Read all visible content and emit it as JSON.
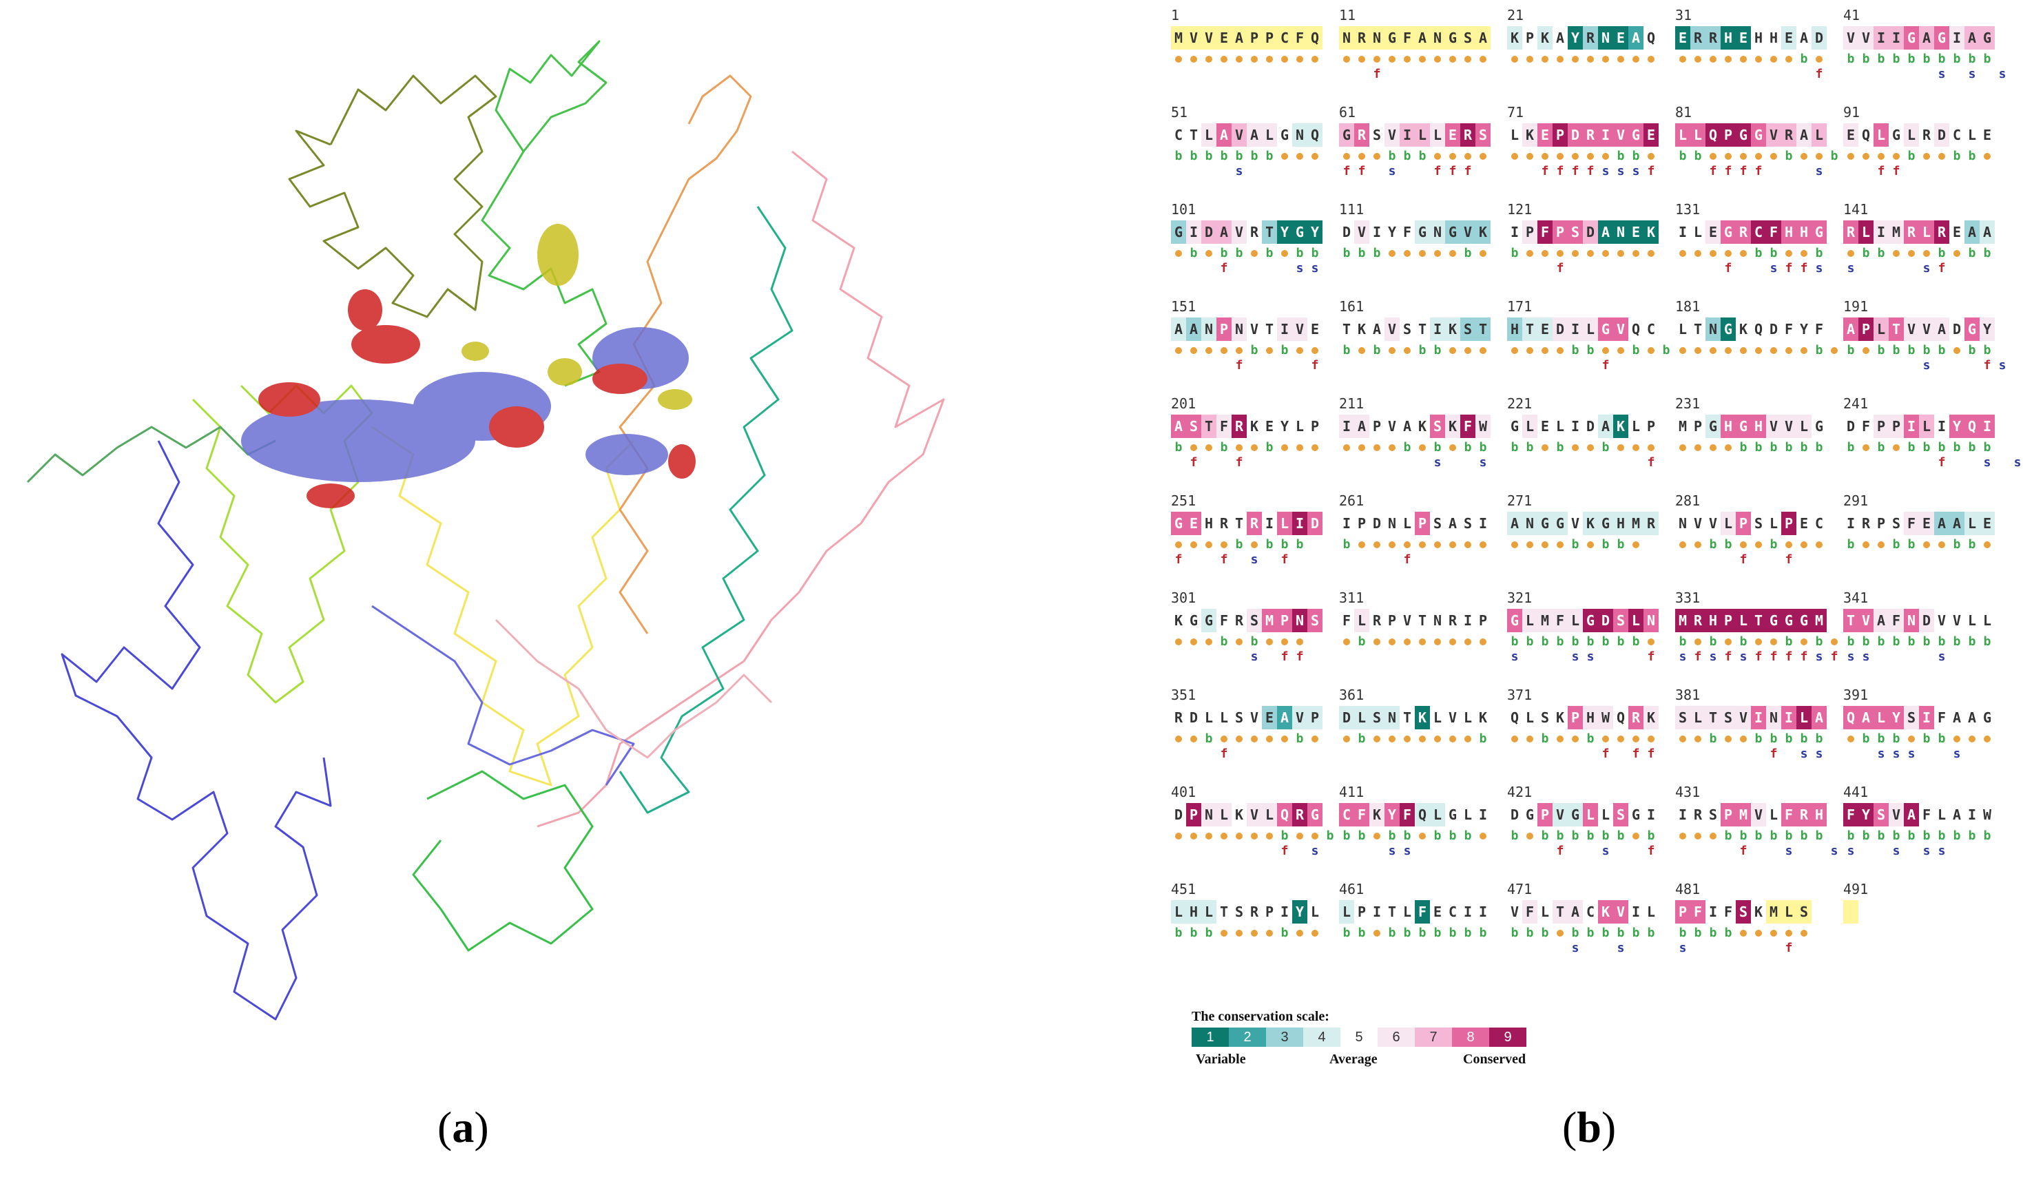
{
  "captions": {
    "a": "a",
    "b": "b"
  },
  "colors": {
    "scale": [
      "#0d7a6e",
      "#3ca7a6",
      "#9bd3d9",
      "#d7eeee",
      "#ffffff",
      "#f6e7f1",
      "#f4b8d6",
      "#e4679f",
      "#a3195b"
    ],
    "scale_text": [
      "#ffffff",
      "#ffffff",
      "#333333",
      "#333333",
      "#333333",
      "#333333",
      "#333333",
      "#ffffff",
      "#ffffff"
    ],
    "insufficient": "#fff59a",
    "exposed": "#e8a13a",
    "buried": "#3aa84a",
    "functional": "#c0242d",
    "structural": "#2c3aa0"
  },
  "legend": {
    "title": "The conservation scale:",
    "grades": [
      "1",
      "2",
      "3",
      "4",
      "5",
      "6",
      "7",
      "8",
      "9"
    ],
    "left": "Variable",
    "mid": "Average",
    "right": "Conserved"
  },
  "blocks": [
    {
      "n": "1",
      "seq": "MVVEAPPCFQ",
      "g": "YYYYYYYYYY",
      "e": "eeeeeeeeee",
      "f": "          "
    },
    {
      "n": "11",
      "seq": "NRNGFANGSA",
      "g": "YYYYYYYYYY",
      "e": "eeeeeeeeee",
      "f": "  f       "
    },
    {
      "n": "21",
      "seq": "KPKAYRNEAQ",
      "g": "4545131125",
      "e": "eeeeeeeeee",
      "f": "          "
    },
    {
      "n": "31",
      "seq": "ERRHEHHEAD",
      "g": "1331155454",
      "e": "eeeeeeeebe",
      "f": "         f"
    },
    {
      "n": "41",
      "seq": "VVIIGAGIAG",
      "g": "6677878677",
      "e": "bbbbbbbbbb",
      "f": "      s s s"
    },
    {
      "n": "51",
      "seq": "CTLAVALGNQ",
      "g": "5568766544",
      "e": "bbbbbbbeee",
      "f": "    s     "
    },
    {
      "n": "61",
      "seq": "GRSVILLERS",
      "g": "7856776898",
      "e": "eeebbbeeee",
      "f": "ff s  fff "
    },
    {
      "n": "71",
      "seq": "LKEPDRIVGE",
      "g": "5689888889",
      "e": "eeeeeeebbe",
      "f": "  ffffsssf"
    },
    {
      "n": "81",
      "seq": "LLQPGGVRAL",
      "g": "8899987767",
      "e": "bbeeeeebeeb",
      "f": "  ffff   s"
    },
    {
      "n": "91",
      "seq": "EQLGLRDCLE",
      "g": "6585656555",
      "e": "eeeebeebbe",
      "f": "  ff      "
    },
    {
      "n": "101",
      "seq": "GIDAVRTYGY",
      "g": "3677653111",
      "e": "ebebbebebb",
      "f": "   f    ss"
    },
    {
      "n": "111",
      "seq": "DVIYFGNGVK",
      "g": "5655544333",
      "e": "bbbeeeeebe",
      "f": "          "
    },
    {
      "n": "121",
      "seq": "IPFPSDANEK",
      "g": "5698871111",
      "e": "beeeeeeeee",
      "f": "   f      "
    },
    {
      "n": "131",
      "seq": "ILEGRCFHHG",
      "g": "5568899888",
      "e": "eeeeebbeeb",
      "f": "   f  sffs"
    },
    {
      "n": "141",
      "seq": "RLIMRLREAA",
      "g": "8966889534",
      "e": "ebbeeebebb",
      "f": "s    sf   "
    },
    {
      "n": "151",
      "seq": "AANPNVTIVE",
      "g": "4348655665",
      "e": "eeeeebebee",
      "f": "    f    f"
    },
    {
      "n": "161",
      "seq": "TKAVSTIKST",
      "g": "5556554433",
      "e": "bebeebbeee",
      "f": "          "
    },
    {
      "n": "171",
      "seq": "HTEDILGVQC",
      "g": "3446668855",
      "e": "eeeebbeebeb",
      "f": "      f   "
    },
    {
      "n": "181",
      "seq": "LTNGKQDFYF",
      "g": "5531555555",
      "e": "eeeeeeeeebe",
      "f": "          "
    },
    {
      "n": "191",
      "seq": "APLTVVADGY",
      "g": "8978666586",
      "e": "bebbbbbebb",
      "f": "     s   fs"
    },
    {
      "n": "201",
      "seq": "ASTFRKEYLP",
      "g": "8876955555",
      "e": "beebeebeee",
      "f": " f  f     "
    },
    {
      "n": "211",
      "seq": "IAPVAKSKFW",
      "g": "6655558696",
      "e": "eeeebebebb",
      "f": "      s  s"
    },
    {
      "n": "221",
      "seq": "GLELIDAKLP",
      "g": "5655554155",
      "e": "bbebeebeee",
      "f": "         f"
    },
    {
      "n": "231",
      "seq": "MPGHGHVVLG",
      "g": "5548886665",
      "e": "eeeebbbbbb",
      "f": "          "
    },
    {
      "n": "241",
      "seq": "DFPPILIYQI",
      "g": "5566875888",
      "e": "bebebbbbbb",
      "f": "      f  s s"
    },
    {
      "n": "251",
      "seq": "GEHRTRILID",
      "g": "8855585898",
      "e": "eeeebebbb",
      "f": "f  f s f  "
    },
    {
      "n": "261",
      "seq": "IPDNLPSASI",
      "g": "5555585555",
      "e": "beeeeeeeee",
      "f": "    f     "
    },
    {
      "n": "271",
      "seq": "ANGGVKGHMR",
      "g": "4444544444",
      "e": "eeeebebbe",
      "f": "          "
    },
    {
      "n": "281",
      "seq": "NVVLPSLPEC",
      "g": "5556855955",
      "e": "eebbeebeee",
      "f": "    f  f  "
    },
    {
      "n": "291",
      "seq": "IRPSFEAALE",
      "g": "5555663344",
      "e": "beebbeebbe",
      "f": "          "
    },
    {
      "n": "301",
      "seq": "KGGFRSMPNS",
      "g": "5545568898",
      "e": "eeebebeee",
      "f": "     s ff "
    },
    {
      "n": "311",
      "seq": "FLRPVTNRIP",
      "g": "5655555555",
      "e": "ebeeeeeeee",
      "f": "          "
    },
    {
      "n": "321",
      "seq": "GLMFLGDSLN",
      "g": "8666699898",
      "e": "bbbbbbbbbe",
      "f": "s   ss   f"
    },
    {
      "n": "331",
      "seq": "MRHPLTGGGM",
      "g": "9999999999",
      "e": "bebebeebebe",
      "f": "sfsfsffffsf"
    },
    {
      "n": "341",
      "seq": "TVAFNDVVLL",
      "g": "8866865555",
      "e": "bbbbbbbbbb",
      "f": "ss    s   "
    },
    {
      "n": "351",
      "seq": "RDLLSVEAVP",
      "g": "5555553244",
      "e": "eebeeeeebe",
      "f": "   f      "
    },
    {
      "n": "361",
      "seq": "DLSNTKLVLK",
      "g": "4444515555",
      "e": "ebeeeeeeeb",
      "f": "          "
    },
    {
      "n": "371",
      "seq": "QLSKPHWQRK",
      "g": "5555866586",
      "e": "eebeebeeee",
      "f": "      f ff"
    },
    {
      "n": "381",
      "seq": "SLTSVINILA",
      "g": "6666686898",
      "e": "eebeebbbbb",
      "f": "      f ss"
    },
    {
      "n": "391",
      "seq": "QALYSIFAAG",
      "g": "8888685555",
      "e": "ebbbebbeee",
      "f": "  sss  s  "
    },
    {
      "n": "401",
      "seq": "DPNLKVLQRG",
      "g": "5966566898",
      "e": "eeeeeeebeeb",
      "f": "       f s"
    },
    {
      "n": "411",
      "seq": "CFKYFQLGLI",
      "g": "8868944555",
      "e": "bbebbebbbe",
      "f": "   ss     "
    },
    {
      "n": "421",
      "seq": "DGPVGLLSGI",
      "g": "5584485855",
      "e": "bebbbbbbeb",
      "f": "   f  s  f"
    },
    {
      "n": "431",
      "seq": "IRSPMVLFRH",
      "g": "5558865888",
      "e": "eeebbbbbbb",
      "f": "    f  s  s"
    },
    {
      "n": "441",
      "seq": "FYSVAFLAIW",
      "g": "9986955555",
      "e": "bbbbbbbbbb",
      "f": "s  s ss   "
    },
    {
      "n": "451",
      "seq": "LHLTSRPIYL",
      "g": "4445555515",
      "e": "bbbeeeebee",
      "f": "          "
    },
    {
      "n": "461",
      "seq": "LPITLFECII",
      "g": "4555515555",
      "e": "bbebbbbbbb",
      "f": "          "
    },
    {
      "n": "471",
      "seq": "VFLTACKVIL",
      "g": "5656658855",
      "e": "bbbebbbbbb",
      "f": "    s  s  "
    },
    {
      "n": "481",
      "seq": "PFIFSKMLS",
      "g": "885595YYY",
      "e": "bbbbeeeee",
      "f": "s      f  "
    },
    {
      "n": "491",
      "seq": "",
      "g": "Y",
      "e": "",
      "f": ""
    }
  ]
}
